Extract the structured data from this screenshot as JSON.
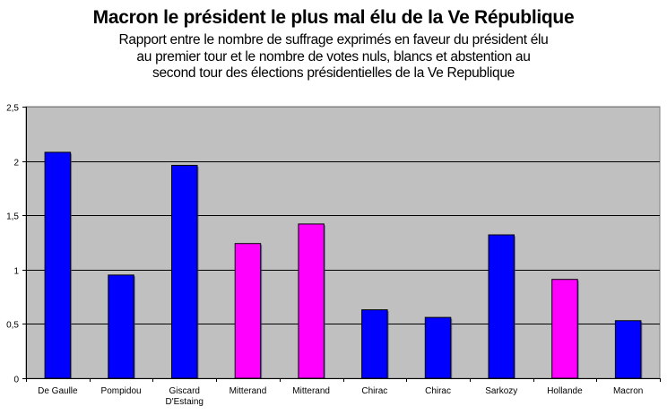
{
  "chart_data": {
    "type": "bar",
    "title": "Macron le président le plus mal élu de la Ve République",
    "subtitle": "Rapport entre le nombre de suffrage exprimés en faveur du président élu au premier tour et le nombre de votes nuls, blancs et abstention au second tour des élections présidentielles de la Ve Republique",
    "xlabel": "",
    "ylabel": "",
    "ylim": [
      0,
      2.5
    ],
    "yticks": [
      "0",
      "0,5",
      "1",
      "1,5",
      "2",
      "2,5"
    ],
    "ytick_values": [
      0,
      0.5,
      1,
      1.5,
      2,
      2.5
    ],
    "grid": true,
    "legend": "none",
    "categories": [
      "De Gaulle",
      "Pompidou",
      "Giscard D'Estaing",
      "Mitterand",
      "Mitterand",
      "Chirac",
      "Chirac",
      "Sarkozy",
      "Hollande",
      "Macron"
    ],
    "category_lines": [
      [
        "De Gaulle"
      ],
      [
        "Pompidou"
      ],
      [
        "Giscard",
        "D'Estaing"
      ],
      [
        "Mitterand"
      ],
      [
        "Mitterand"
      ],
      [
        "Chirac"
      ],
      [
        "Chirac"
      ],
      [
        "Sarkozy"
      ],
      [
        "Hollande"
      ],
      [
        "Macron"
      ]
    ],
    "values": [
      2.08,
      0.95,
      1.96,
      1.24,
      1.42,
      0.63,
      0.56,
      1.32,
      0.91,
      0.53
    ],
    "bar_colors": [
      "#0000ff",
      "#0000ff",
      "#0000ff",
      "#ff00ff",
      "#ff00ff",
      "#0000ff",
      "#0000ff",
      "#0000ff",
      "#ff00ff",
      "#0000ff"
    ],
    "plot_background": "#c0c0c0"
  }
}
